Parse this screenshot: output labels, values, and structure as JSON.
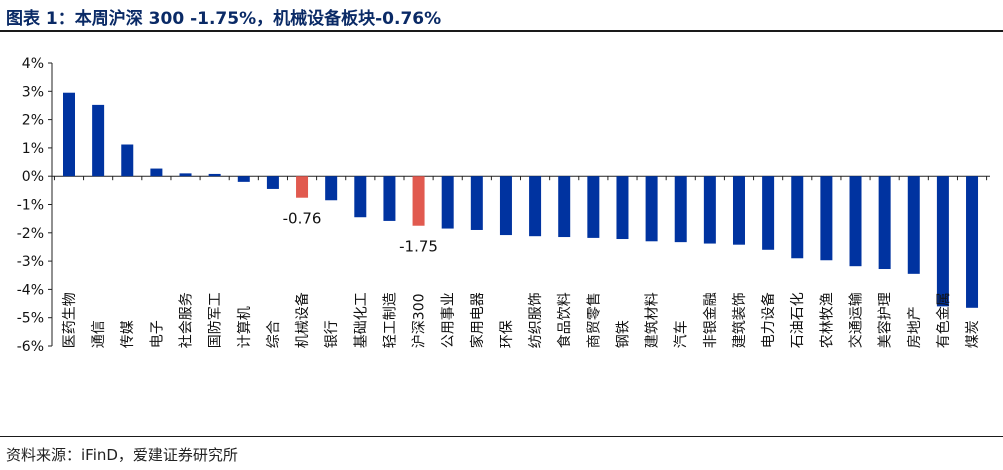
{
  "title": "图表 1：本周沪深 300 -1.75%，机械设备板块-0.76%",
  "source": "资料来源：iFinD，爱建证券研究所",
  "colors": {
    "default_bar": "#0033a0",
    "highlight_bar": "#e15a4f",
    "title": "#0a2a66"
  },
  "chart_data": {
    "type": "bar",
    "title": "",
    "xlabel": "",
    "ylabel": "",
    "ylim": [
      -6,
      4
    ],
    "yticks": [
      "4%",
      "3%",
      "2%",
      "1%",
      "0%",
      "-1%",
      "-2%",
      "-3%",
      "-4%",
      "-5%",
      "-6%"
    ],
    "ytick_values": [
      4,
      3,
      2,
      1,
      0,
      -1,
      -2,
      -3,
      -4,
      -5,
      -6
    ],
    "grid": false,
    "legend": "none",
    "categories": [
      "医药生物",
      "通信",
      "传媒",
      "电子",
      "社会服务",
      "国防军工",
      "计算机",
      "综合",
      "机械设备",
      "银行",
      "基础化工",
      "轻工制造",
      "沪深300",
      "公用事业",
      "家用电器",
      "环保",
      "纺织服饰",
      "食品饮料",
      "商贸零售",
      "钢铁",
      "建筑材料",
      "汽车",
      "非银金融",
      "建筑装饰",
      "电力设备",
      "石油石化",
      "农林牧渔",
      "交通运输",
      "美容护理",
      "房地产",
      "有色金属",
      "煤炭"
    ],
    "values": [
      2.95,
      2.52,
      1.12,
      0.27,
      0.1,
      0.08,
      -0.2,
      -0.45,
      -0.76,
      -0.85,
      -1.45,
      -1.58,
      -1.75,
      -1.85,
      -1.9,
      -2.08,
      -2.12,
      -2.15,
      -2.18,
      -2.22,
      -2.3,
      -2.33,
      -2.38,
      -2.42,
      -2.6,
      -2.9,
      -2.97,
      -3.18,
      -3.28,
      -3.45,
      -4.6,
      -4.65
    ],
    "highlight_indices": [
      8,
      12
    ],
    "data_labels": [
      {
        "index": 8,
        "text": "-0.76"
      },
      {
        "index": 12,
        "text": "-1.75"
      }
    ]
  }
}
